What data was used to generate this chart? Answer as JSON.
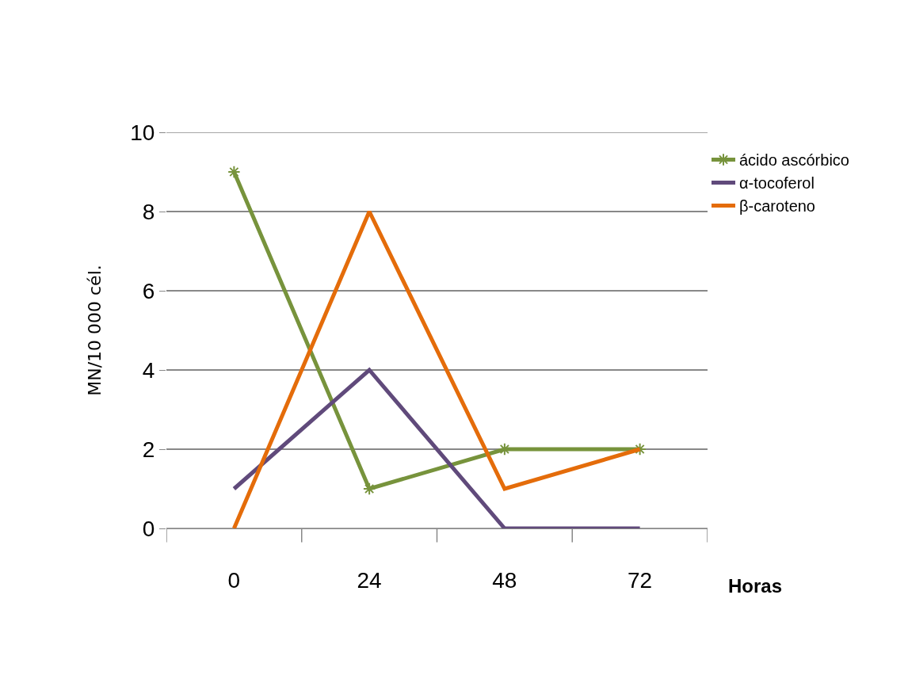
{
  "chart_data": {
    "type": "line",
    "xlabel": "Horas",
    "ylabel": "MN/10 000 cél.",
    "categories": [
      "0",
      "24",
      "48",
      "72"
    ],
    "series": [
      {
        "name": "ácido ascórbico",
        "color": "#77933c",
        "values": [
          9,
          1,
          2,
          2
        ],
        "marker": "cross"
      },
      {
        "name": "α-tocoferol",
        "color": "#604a7b",
        "values": [
          1,
          4,
          0,
          0
        ]
      },
      {
        "name": "β-caroteno",
        "color": "#e46c0a",
        "values": [
          0,
          8,
          1,
          2
        ]
      }
    ],
    "ylim": [
      0,
      10
    ],
    "yticks": [
      0,
      2,
      4,
      6,
      8,
      10
    ],
    "grid": "y",
    "legend": "right"
  }
}
